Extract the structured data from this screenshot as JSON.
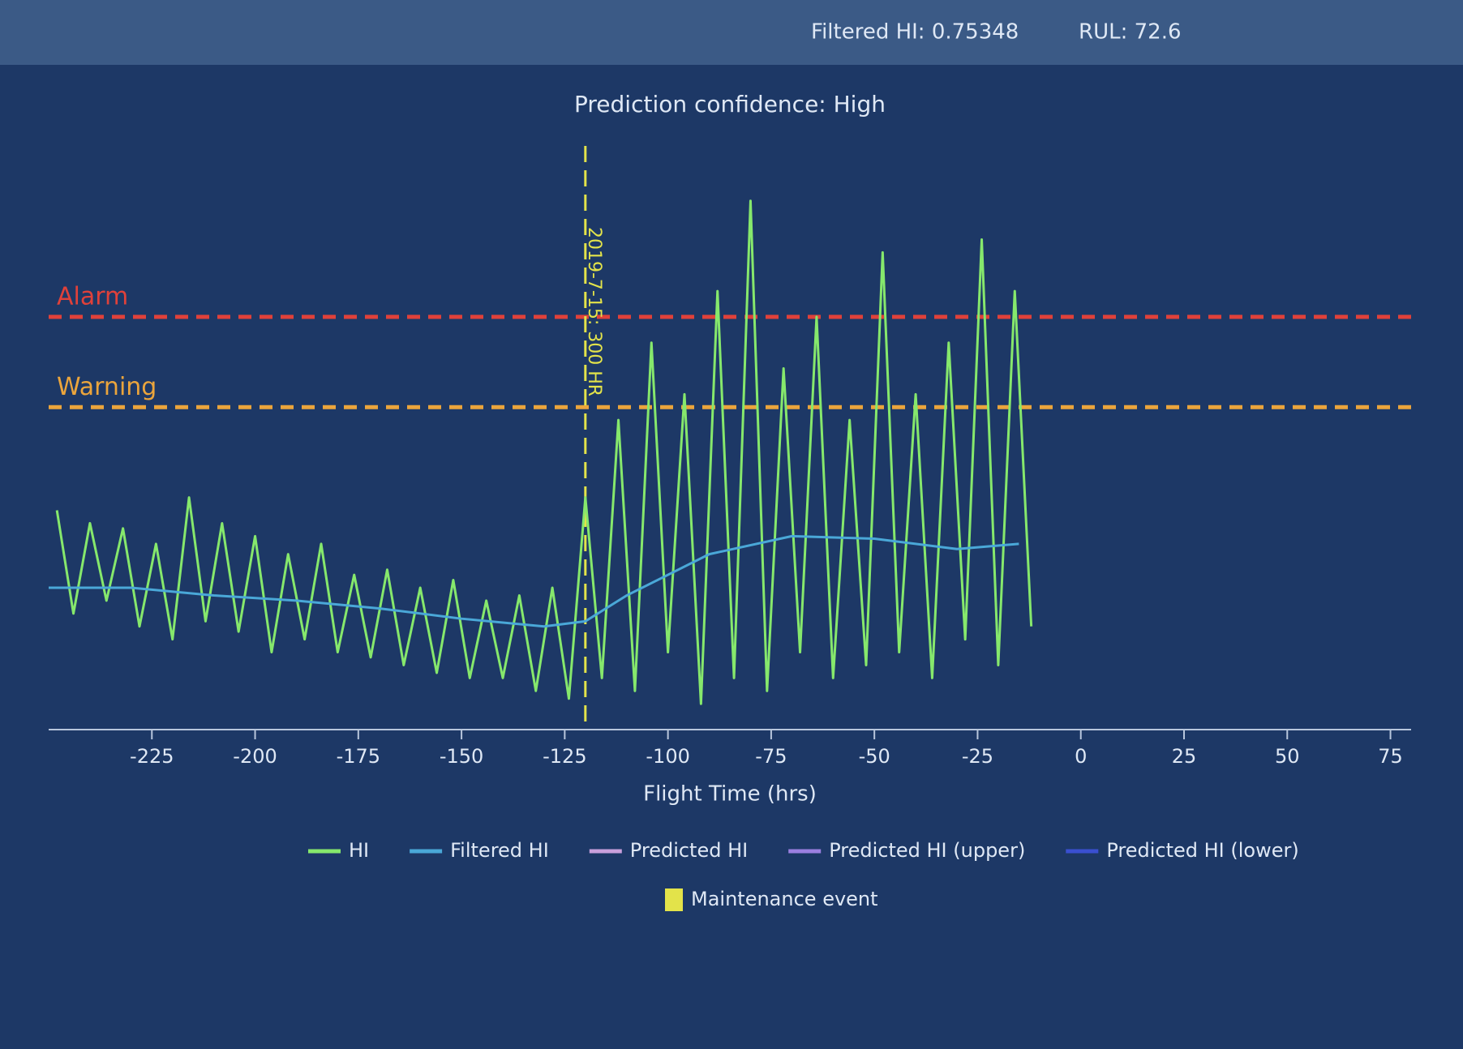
{
  "header": {
    "status": "Filtered HI: 0.75348",
    "rul": "RUL: 72.6"
  },
  "chart_data": {
    "type": "line",
    "subtitle": "Prediction confidence: High",
    "xlabel": "Flight Time (hrs)",
    "xlim": [
      -250,
      80
    ],
    "xticks": [
      -225,
      -200,
      -175,
      -150,
      -125,
      -100,
      -75,
      -50,
      -25,
      0,
      25,
      50,
      75
    ],
    "ylim": [
      0,
      2.2
    ],
    "series": [
      {
        "name": "HI",
        "color": "#86e86c",
        "x": [
          -248,
          -244,
          -240,
          -236,
          -232,
          -228,
          -224,
          -220,
          -216,
          -212,
          -208,
          -204,
          -200,
          -196,
          -192,
          -188,
          -184,
          -180,
          -176,
          -172,
          -168,
          -164,
          -160,
          -156,
          -152,
          -148,
          -144,
          -140,
          -136,
          -132,
          -128,
          -124,
          -120,
          -116,
          -112,
          -108,
          -104,
          -100,
          -96,
          -92,
          -88,
          -84,
          -80,
          -76,
          -72,
          -68,
          -64,
          -60,
          -56,
          -52,
          -48,
          -44,
          -40,
          -36,
          -32,
          -28,
          -24,
          -20,
          -16,
          -12
        ],
        "values": [
          0.85,
          0.45,
          0.8,
          0.5,
          0.78,
          0.4,
          0.72,
          0.35,
          0.9,
          0.42,
          0.8,
          0.38,
          0.75,
          0.3,
          0.68,
          0.35,
          0.72,
          0.3,
          0.6,
          0.28,
          0.62,
          0.25,
          0.55,
          0.22,
          0.58,
          0.2,
          0.5,
          0.2,
          0.52,
          0.15,
          0.55,
          0.12,
          0.9,
          0.2,
          1.2,
          0.15,
          1.5,
          0.3,
          1.3,
          0.1,
          1.7,
          0.2,
          2.05,
          0.15,
          1.4,
          0.3,
          1.6,
          0.2,
          1.2,
          0.25,
          1.85,
          0.3,
          1.3,
          0.2,
          1.5,
          0.35,
          1.9,
          0.25,
          1.7,
          0.4
        ]
      },
      {
        "name": "Filtered HI",
        "color": "#4aa8d8",
        "x": [
          -250,
          -230,
          -210,
          -190,
          -170,
          -150,
          -130,
          -120,
          -110,
          -90,
          -70,
          -50,
          -30,
          -15
        ],
        "values": [
          0.55,
          0.55,
          0.52,
          0.5,
          0.47,
          0.43,
          0.4,
          0.42,
          0.52,
          0.68,
          0.75,
          0.74,
          0.7,
          0.72
        ]
      },
      {
        "name": "Predicted HI",
        "color": "#c9a0dc",
        "x": [],
        "values": []
      },
      {
        "name": "Predicted HI (upper)",
        "color": "#9b7fe0",
        "x": [],
        "values": []
      },
      {
        "name": "Predicted HI (lower)",
        "color": "#3a4fd0",
        "x": [],
        "values": []
      }
    ],
    "thresholds": [
      {
        "label": "Alarm",
        "value": 1.6,
        "color": "#e0413a"
      },
      {
        "label": "Warning",
        "value": 1.25,
        "color": "#eba53c"
      }
    ],
    "events": {
      "name": "Maintenance event",
      "color": "#e3e34a",
      "x": [
        -120
      ],
      "labels": [
        "2019-7-15: 300 HR"
      ]
    }
  }
}
